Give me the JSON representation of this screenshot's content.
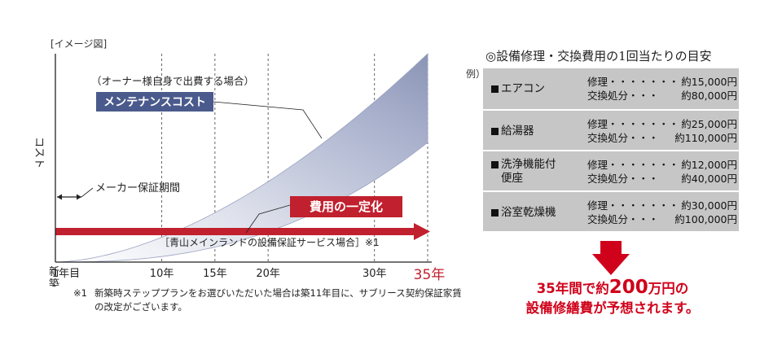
{
  "chart_data": {
    "type": "area",
    "image_label": "[イメージ図]",
    "ylabel": "コスト",
    "x_origin_label": "新築",
    "x_ticks": [
      1,
      10,
      15,
      20,
      30,
      35
    ],
    "x_tick_labels": [
      "1年目",
      "10年",
      "15年",
      "20年",
      "30年",
      "35年"
    ],
    "highlight_tick": "35年",
    "xlim": [
      0,
      35
    ],
    "gridlines_at": [
      10,
      15,
      20,
      30,
      35
    ],
    "series": [
      {
        "name": "メンテナンスコスト",
        "subtitle": "（オーナー様自身で出費する場合）",
        "shape": "rising band (increasing cost)",
        "color": "#8e97b6"
      },
      {
        "name": "費用の一定化",
        "subtitle": "［青山メインランドの設備保証サービス場合］※1",
        "shape": "flat constant arrow",
        "color": "#c1202e"
      }
    ],
    "annotations": [
      {
        "text": "メーカー保証期間",
        "x_range": [
          0,
          1
        ]
      }
    ]
  },
  "footnote": {
    "mark": "※1",
    "text": "新築時ステッププランをお選びいただいた場合は築11年目に、サブリース契約保証家賃の改定がございます。"
  },
  "cost_panel": {
    "title": "◎設備修理・交換費用の1回当たりの目安",
    "example_label": "例）",
    "rows": [
      {
        "name": "エアコン",
        "repair_label": "修理・・・・・・・",
        "repair_value": "約15,000円",
        "replace_label": "交換処分・・・",
        "replace_value": "約80,000円"
      },
      {
        "name": "給湯器",
        "repair_label": "修理・・・・・・・",
        "repair_value": "約25,000円",
        "replace_label": "交換処分・・・",
        "replace_value": "約110,000円"
      },
      {
        "name": "洗浄機能付便座",
        "repair_label": "修理・・・・・・・",
        "repair_value": "約12,000円",
        "replace_label": "交換処分・・・",
        "replace_value": "約40,000円"
      },
      {
        "name": "浴室乾燥機",
        "repair_label": "修理・・・・・・・",
        "repair_value": "約30,000円",
        "replace_label": "交換処分・・・",
        "replace_value": "約100,000円"
      }
    ],
    "summary_line1_prefix": "35年間で約",
    "summary_amount": "200",
    "summary_line1_suffix": "万円の",
    "summary_line2": "設備修繕費が予想されます。",
    "colors": {
      "accent": "#d0021b",
      "table_bg": "#c6c6c6"
    }
  }
}
